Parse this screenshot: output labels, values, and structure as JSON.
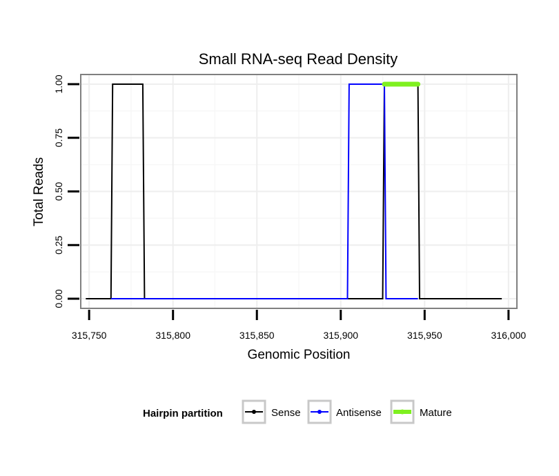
{
  "chart_data": {
    "type": "line",
    "title": "Small RNA-seq Read Density",
    "xlabel": "Genomic Position",
    "ylabel": "Total Reads",
    "xlim": [
      315745,
      316005
    ],
    "ylim": [
      -0.045,
      1.045
    ],
    "x_ticks": [
      315750,
      315800,
      315850,
      315900,
      315950,
      316000
    ],
    "x_tick_labels": [
      "315,750",
      "315,800",
      "315,850",
      "315,900",
      "315,950",
      "316,000"
    ],
    "y_ticks": [
      0,
      0.25,
      0.5,
      0.75,
      1.0
    ],
    "y_tick_labels": [
      "0.00",
      "0.25",
      "0.50",
      "0.75",
      "1.00"
    ],
    "grid": true,
    "series": [
      {
        "name": "Sense",
        "color": "#000000",
        "x": [
          315748,
          315763,
          315764,
          315782,
          315783,
          315925,
          315926,
          315946,
          315947,
          315996
        ],
        "y": [
          0,
          0,
          1,
          1,
          0,
          0,
          1,
          1,
          0,
          0
        ]
      },
      {
        "name": "Antisense",
        "color": "#0000ff",
        "x": [
          315763,
          315783,
          315904,
          315905,
          315926,
          315927,
          315946
        ],
        "y": [
          0,
          0,
          0,
          1,
          1,
          0,
          0
        ]
      },
      {
        "name": "Mature",
        "color": "#7ff020",
        "x": [
          315926,
          315946
        ],
        "y": [
          1,
          1
        ]
      }
    ],
    "legend": {
      "title": "Hairpin partition",
      "placement": "bottom",
      "entries": [
        "Sense",
        "Antisense",
        "Mature"
      ]
    }
  }
}
